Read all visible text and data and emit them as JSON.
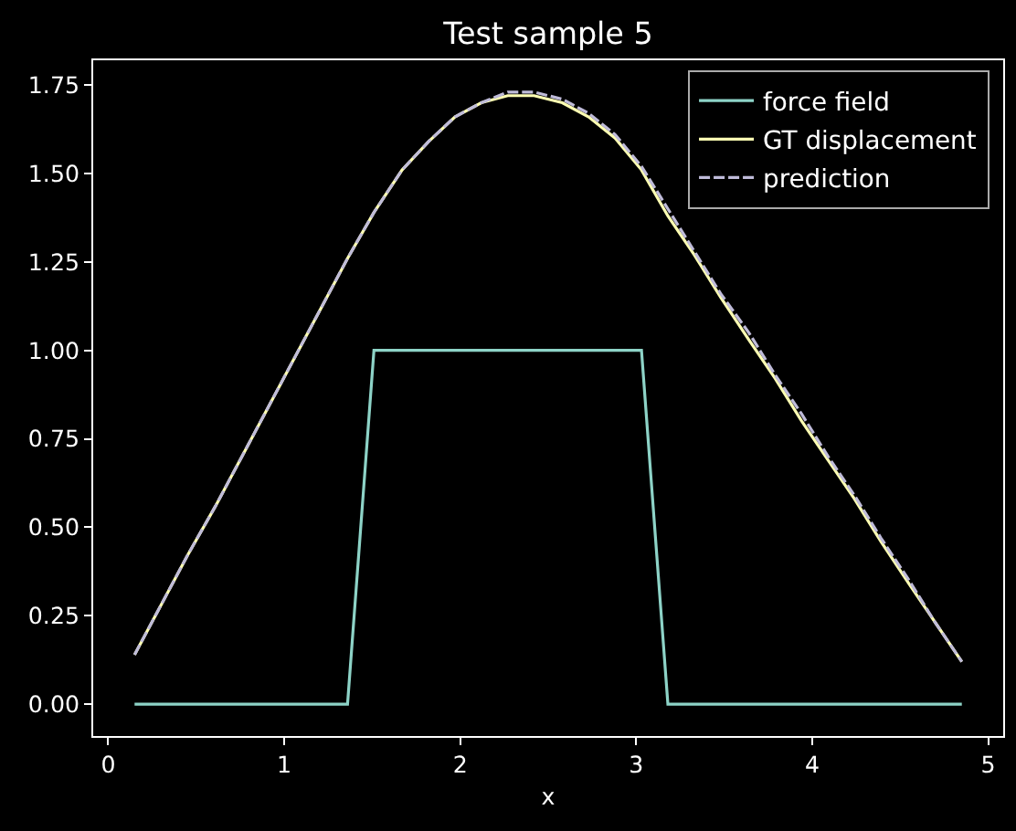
{
  "chart_data": {
    "type": "line",
    "title": "Test sample 5",
    "xlabel": "x",
    "x": [
      0.15,
      0.3,
      0.45,
      0.61,
      0.76,
      0.91,
      1.06,
      1.21,
      1.36,
      1.51,
      1.67,
      1.82,
      1.97,
      2.12,
      2.27,
      2.42,
      2.58,
      2.73,
      2.88,
      3.03,
      3.18,
      3.33,
      3.48,
      3.64,
      3.79,
      3.94,
      4.09,
      4.24,
      4.39,
      4.55,
      4.7,
      4.85
    ],
    "series": [
      {
        "name": "force field",
        "color": "#8dd3c7",
        "values": [
          0,
          0,
          0,
          0,
          0,
          0,
          0,
          0,
          0,
          1,
          1,
          1,
          1,
          1,
          1,
          1,
          1,
          1,
          1,
          1,
          0,
          0,
          0,
          0,
          0,
          0,
          0,
          0,
          0,
          0,
          0,
          0
        ]
      },
      {
        "name": "GT displacement",
        "color": "#feffb3",
        "values": [
          0.14,
          0.28,
          0.42,
          0.56,
          0.7,
          0.84,
          0.98,
          1.12,
          1.26,
          1.39,
          1.51,
          1.59,
          1.66,
          1.7,
          1.72,
          1.72,
          1.7,
          1.66,
          1.6,
          1.51,
          1.38,
          1.27,
          1.15,
          1.03,
          0.92,
          0.8,
          0.69,
          0.58,
          0.46,
          0.34,
          0.23,
          0.12
        ]
      },
      {
        "name": "prediction",
        "color": "#bfbbd9",
        "line_style": "dashed",
        "values": [
          0.14,
          0.28,
          0.42,
          0.56,
          0.7,
          0.84,
          0.98,
          1.12,
          1.26,
          1.39,
          1.51,
          1.59,
          1.66,
          1.7,
          1.73,
          1.73,
          1.71,
          1.67,
          1.61,
          1.52,
          1.4,
          1.28,
          1.16,
          1.05,
          0.93,
          0.82,
          0.7,
          0.59,
          0.47,
          0.35,
          0.23,
          0.12
        ]
      }
    ],
    "xlim": [
      -0.085,
      5.085
    ],
    "ylim": [
      -0.09,
      1.82
    ],
    "xticks": [
      0,
      1,
      2,
      3,
      4,
      5
    ],
    "yticks": [
      {
        "value": 0,
        "label": "0.00"
      },
      0.25,
      {
        "value": 0.5,
        "label": "0.50"
      },
      0.75,
      {
        "value": 1,
        "label": "1.00"
      },
      1.25,
      {
        "value": 1.5,
        "label": "1.50"
      },
      1.75
    ],
    "legend": "top right",
    "marker": "none",
    "line_style": "solid"
  }
}
